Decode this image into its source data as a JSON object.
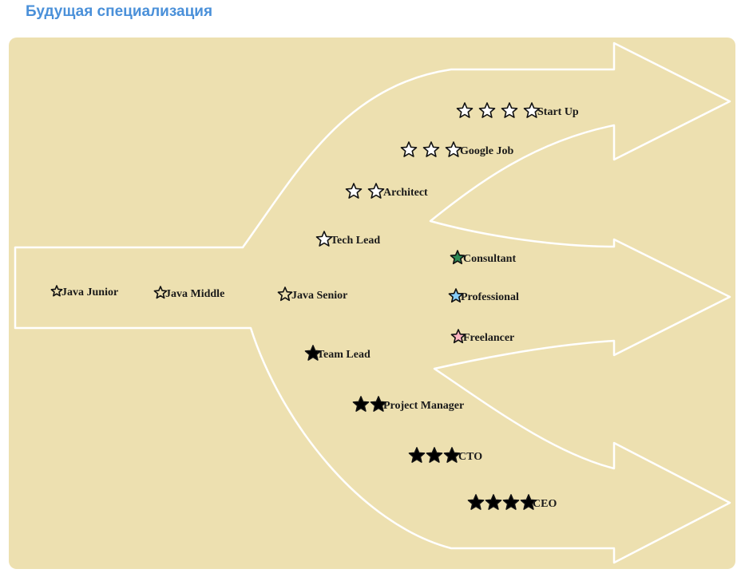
{
  "header": {
    "title": "Будущая специализация"
  },
  "colors": {
    "panel": "#ede0b0",
    "outline": "#ffffff",
    "title": "#4a90d9",
    "consultant_star": "#2e8b57",
    "professional_star": "#87cefa",
    "freelancer_star": "#ffb6c1"
  },
  "nodes": [
    {
      "id": "java-junior",
      "label": "Java Junior",
      "stars": 1,
      "fill": "none"
    },
    {
      "id": "java-middle",
      "label": "Java Middle",
      "stars": 1,
      "fill": "none"
    },
    {
      "id": "java-senior",
      "label": "Java Senior",
      "stars": 1,
      "fill": "none"
    },
    {
      "id": "tech-lead",
      "label": "Tech Lead",
      "stars": 1,
      "fill": "white"
    },
    {
      "id": "architect",
      "label": "Architect",
      "stars": 2,
      "fill": "white"
    },
    {
      "id": "google-job",
      "label": "Google Job",
      "stars": 3,
      "fill": "white"
    },
    {
      "id": "start-up",
      "label": "Start Up",
      "stars": 4,
      "fill": "white"
    },
    {
      "id": "consultant",
      "label": "Consultant",
      "stars": 1,
      "fill": "#2e8b57"
    },
    {
      "id": "professional",
      "label": "Professional",
      "stars": 1,
      "fill": "#87cefa"
    },
    {
      "id": "freelancer",
      "label": "Freelancer",
      "stars": 1,
      "fill": "#ffb6c1"
    },
    {
      "id": "team-lead",
      "label": "Team Lead",
      "stars": 1,
      "fill": "black"
    },
    {
      "id": "project-manager",
      "label": "Project Manager",
      "stars": 2,
      "fill": "black"
    },
    {
      "id": "cto",
      "label": "CTO",
      "stars": 3,
      "fill": "black"
    },
    {
      "id": "ceo",
      "label": "CEO",
      "stars": 4,
      "fill": "black"
    }
  ]
}
